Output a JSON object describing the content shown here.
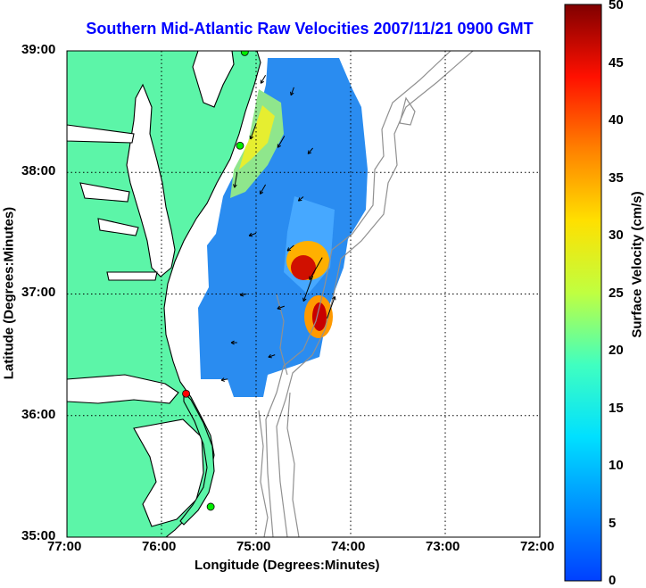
{
  "title": "Southern Mid-Atlantic Raw Velocities 2007/11/21 0900 GMT",
  "map": {
    "xlabel": "Longitude (Degrees:Minutes)",
    "ylabel": "Latitude (Degrees:Minutes)",
    "x_ticks": [
      "77:00",
      "76:00",
      "75:00",
      "74:00",
      "73:00",
      "72:00"
    ],
    "y_ticks": [
      "39:00",
      "38:00",
      "37:00",
      "36:00",
      "35:00"
    ],
    "lon_range": [
      -77,
      -72
    ],
    "lat_range": [
      35,
      39
    ],
    "grid": "dotted",
    "colors": {
      "land": "#5cf5a8",
      "ocean": "#ffffff",
      "coast": "#000000",
      "bathymetry": "#888888",
      "arrows": "#000000"
    },
    "stations": [
      {
        "lon": -75.12,
        "lat": 38.99,
        "color": "#00ee00"
      },
      {
        "lon": -75.17,
        "lat": 38.22,
        "color": "#00ee00"
      },
      {
        "lon": -75.74,
        "lat": 36.18,
        "color": "#ff0000"
      },
      {
        "lon": -75.48,
        "lat": 35.25,
        "color": "#00ee00"
      }
    ],
    "velocity_field": [
      {
        "lon": -74.9,
        "lat": 38.8,
        "speed": 12,
        "dir": 210
      },
      {
        "lon": -74.6,
        "lat": 38.7,
        "speed": 10,
        "dir": 200
      },
      {
        "lon": -75.0,
        "lat": 38.4,
        "speed": 26,
        "dir": 200
      },
      {
        "lon": -74.7,
        "lat": 38.3,
        "speed": 20,
        "dir": 210
      },
      {
        "lon": -74.4,
        "lat": 38.2,
        "speed": 8,
        "dir": 220
      },
      {
        "lon": -75.2,
        "lat": 38.0,
        "speed": 24,
        "dir": 190
      },
      {
        "lon": -74.9,
        "lat": 37.9,
        "speed": 15,
        "dir": 210
      },
      {
        "lon": -74.5,
        "lat": 37.8,
        "speed": 6,
        "dir": 230
      },
      {
        "lon": -75.0,
        "lat": 37.5,
        "speed": 8,
        "dir": 250
      },
      {
        "lon": -74.6,
        "lat": 37.4,
        "speed": 10,
        "dir": 230
      },
      {
        "lon": -74.3,
        "lat": 37.3,
        "speed": 45,
        "dir": 210
      },
      {
        "lon": -74.4,
        "lat": 37.15,
        "speed": 48,
        "dir": 200
      },
      {
        "lon": -75.1,
        "lat": 37.0,
        "speed": 6,
        "dir": 260
      },
      {
        "lon": -74.7,
        "lat": 36.9,
        "speed": 8,
        "dir": 250
      },
      {
        "lon": -74.25,
        "lat": 36.8,
        "speed": 40,
        "dir": 20
      },
      {
        "lon": -75.2,
        "lat": 36.6,
        "speed": 5,
        "dir": 270
      },
      {
        "lon": -74.8,
        "lat": 36.5,
        "speed": 7,
        "dir": 250
      },
      {
        "lon": -75.3,
        "lat": 36.3,
        "speed": 6,
        "dir": 260
      }
    ]
  },
  "colorbar": {
    "label": "Surface Velocity (cm/s)",
    "ticks": [
      "0",
      "5",
      "10",
      "15",
      "20",
      "25",
      "30",
      "35",
      "40",
      "45",
      "50"
    ],
    "range": [
      0,
      50
    ]
  }
}
